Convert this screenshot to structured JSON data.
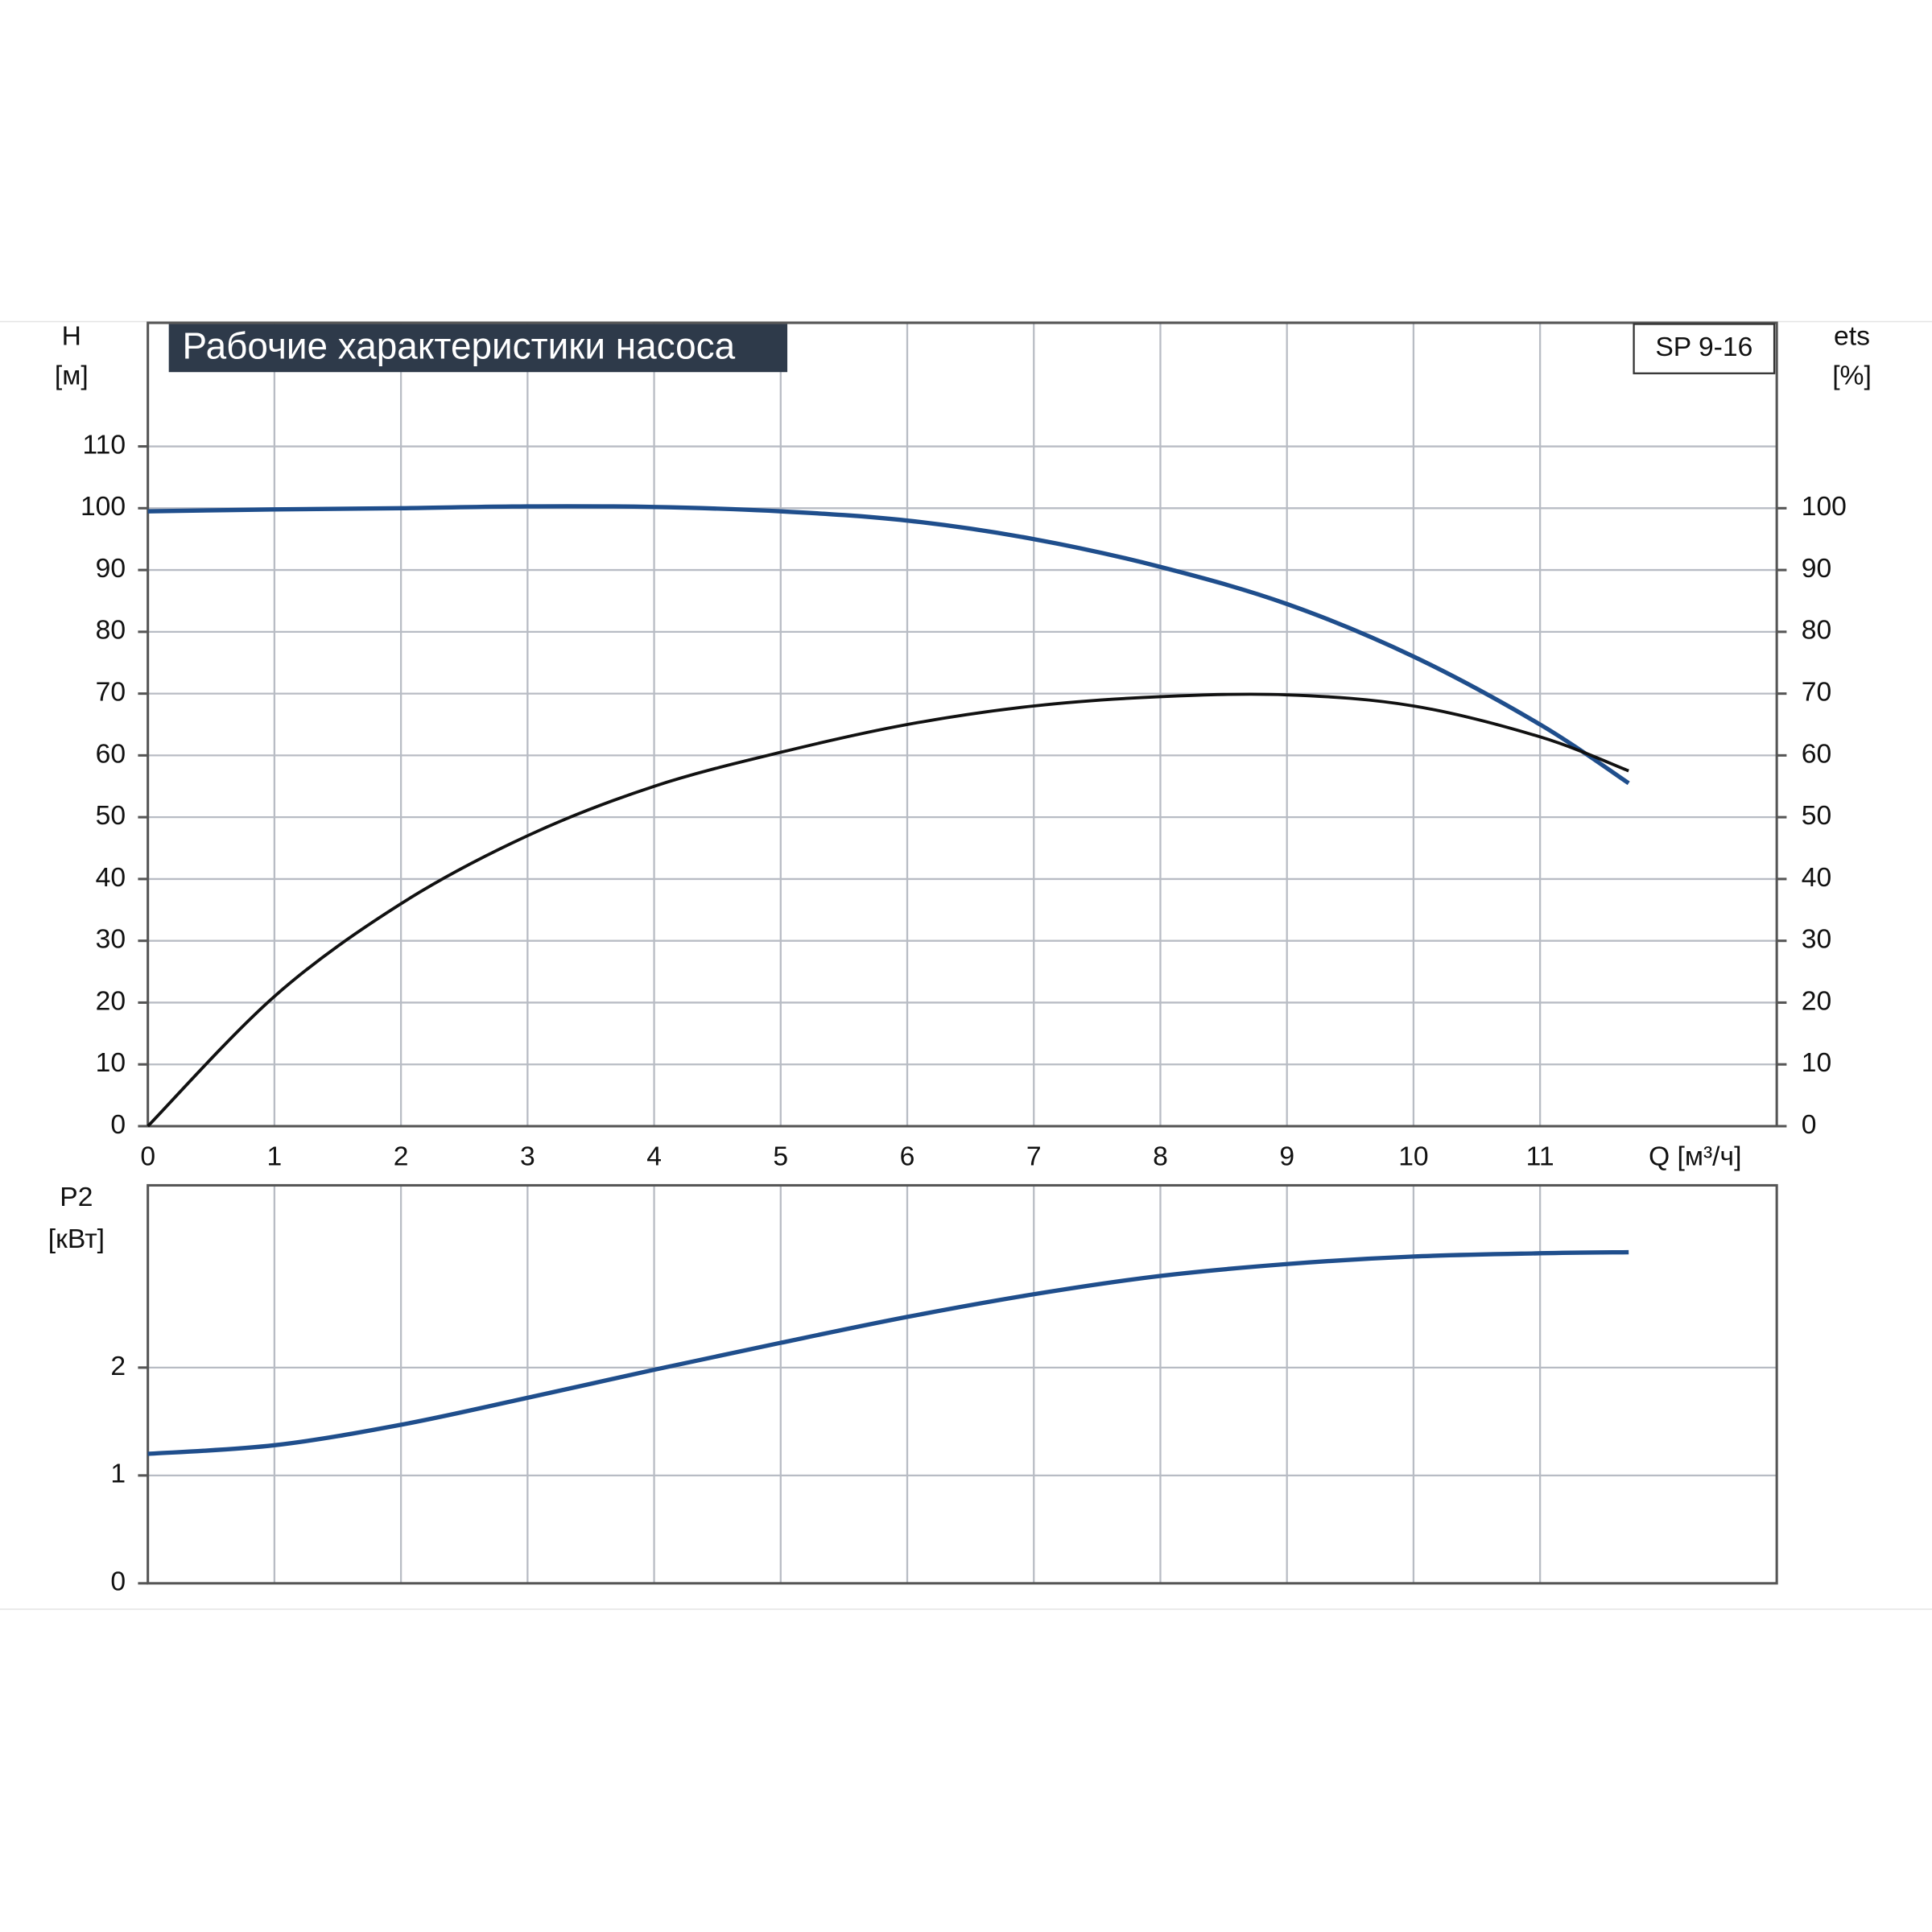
{
  "chart_data": [
    {
      "type": "line",
      "title": "Рабочие характеристики насоса",
      "model": "SP 9-16",
      "ylabel": "H",
      "yunit": "[м]",
      "y2label": "ets",
      "y2unit": "[%]",
      "xlabel": "Q [м³/ч]",
      "x": [
        0,
        1,
        2,
        3,
        4,
        5,
        6,
        7,
        8,
        9,
        10,
        11,
        11.7
      ],
      "xlim": [
        0,
        12.87
      ],
      "xticks": [
        0,
        1,
        2,
        3,
        4,
        5,
        6,
        7,
        8,
        9,
        10,
        11
      ],
      "ylim": [
        0,
        130
      ],
      "yticks": [
        0,
        10,
        20,
        30,
        40,
        50,
        60,
        70,
        80,
        90,
        100,
        110
      ],
      "y2lim": [
        0,
        130
      ],
      "y2ticks": [
        0,
        10,
        20,
        30,
        40,
        50,
        60,
        70,
        80,
        90,
        100
      ],
      "grid": true,
      "series": [
        {
          "color": "#1f4e8c",
          "values": [
            99.5,
            99.8,
            100,
            100.3,
            100.2,
            99.5,
            98,
            95,
            90.5,
            84.5,
            76,
            65,
            55.5
          ]
        },
        {
          "color": "#111111",
          "axis": "y2",
          "values": [
            0,
            21,
            36,
            47,
            55,
            60.5,
            65,
            68,
            69.5,
            69.8,
            68,
            63,
            57.5
          ]
        }
      ]
    },
    {
      "type": "line",
      "ylabel": "P2",
      "yunit": "[кВт]",
      "x": [
        0,
        1,
        2,
        3,
        4,
        5,
        6,
        7,
        8,
        9,
        10,
        11,
        11.7
      ],
      "xlim": [
        0,
        12.87
      ],
      "ylim": [
        0,
        3.69
      ],
      "yticks": [
        0,
        1,
        2
      ],
      "grid": true,
      "series": [
        {
          "color": "#1f4e8c",
          "values": [
            1.2,
            1.28,
            1.47,
            1.72,
            1.98,
            2.23,
            2.47,
            2.68,
            2.85,
            2.96,
            3.03,
            3.06,
            3.07
          ]
        }
      ]
    }
  ]
}
